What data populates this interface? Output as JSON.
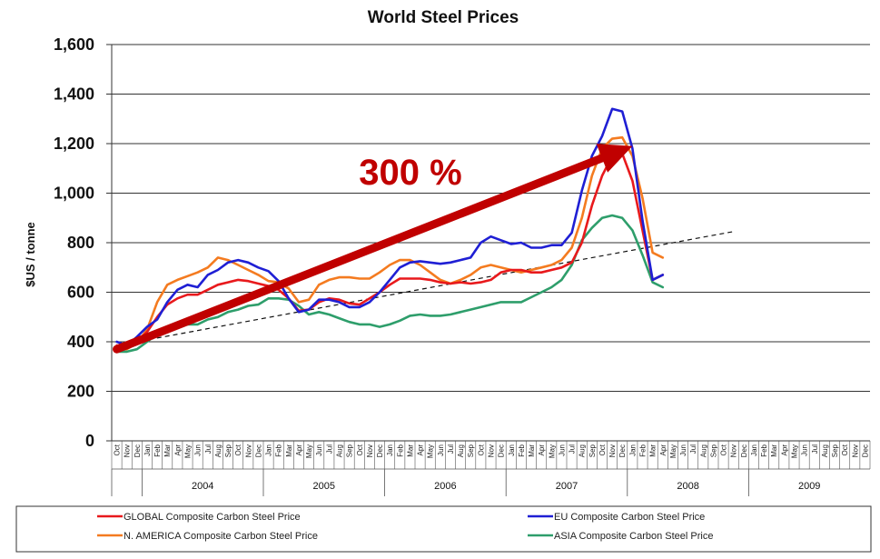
{
  "chart_data": {
    "type": "line",
    "title": "World Steel Prices",
    "xlabel": "",
    "ylabel": "$US / tonne",
    "ylim": [
      0,
      1600
    ],
    "yticks": [
      "0",
      "200",
      "400",
      "600",
      "800",
      "1,000",
      "1,200",
      "1,400",
      "1,600"
    ],
    "ytick_values": [
      0,
      200,
      400,
      600,
      800,
      1000,
      1200,
      1400,
      1600
    ],
    "grid": true,
    "legend_position": "bottom",
    "month_labels": [
      "Oct",
      "Nov",
      "Dec",
      "Jan",
      "Feb",
      "Mar",
      "Apr",
      "May",
      "Jun",
      "Jul",
      "Aug",
      "Sep",
      "Oct",
      "Nov",
      "Dec",
      "Jan",
      "Feb",
      "Mar",
      "Apr",
      "May",
      "Jun",
      "Jul",
      "Aug",
      "Sep",
      "Oct",
      "Nov",
      "Dec",
      "Jan",
      "Feb",
      "Mar",
      "Apr",
      "May",
      "Jun",
      "Jul",
      "Aug",
      "Sep",
      "Oct",
      "Nov",
      "Dec",
      "Jan",
      "Feb",
      "Mar",
      "Apr",
      "May",
      "Jun",
      "Jul",
      "Aug",
      "Sep",
      "Oct",
      "Nov",
      "Dec",
      "Jan",
      "Feb",
      "Mar",
      "Apr",
      "May",
      "Jun",
      "Jul",
      "Aug",
      "Sep",
      "Oct",
      "Nov",
      "Dec",
      "Jan",
      "Feb",
      "Mar",
      "Apr",
      "May",
      "Jun",
      "Jul",
      "Aug",
      "Sep",
      "Oct",
      "Nov",
      "Dec"
    ],
    "year_groups": [
      {
        "label": "",
        "start": 0,
        "end": 2
      },
      {
        "label": "2004",
        "start": 3,
        "end": 14
      },
      {
        "label": "2005",
        "start": 15,
        "end": 26
      },
      {
        "label": "2006",
        "start": 27,
        "end": 38
      },
      {
        "label": "2007",
        "start": 39,
        "end": 50
      },
      {
        "label": "2008",
        "start": 51,
        "end": 62
      },
      {
        "label": "2009",
        "start": 63,
        "end": 74
      }
    ],
    "series": [
      {
        "name": "GLOBAL Composite Carbon Steel Price",
        "color": "#e8191c",
        "values": [
          385,
          380,
          400,
          440,
          500,
          550,
          575,
          590,
          590,
          610,
          630,
          640,
          650,
          645,
          635,
          625,
          610,
          575,
          525,
          530,
          560,
          575,
          570,
          555,
          550,
          575,
          600,
          630,
          655,
          655,
          655,
          650,
          640,
          635,
          640,
          635,
          640,
          650,
          680,
          690,
          690,
          680,
          680,
          690,
          700,
          720,
          800,
          950,
          1070,
          1150,
          1160,
          1050,
          850,
          650,
          670
        ]
      },
      {
        "name": "N. AMERICA Composite Carbon Steel Price",
        "color": "#f47b20",
        "values": [
          370,
          370,
          395,
          450,
          560,
          630,
          650,
          665,
          680,
          700,
          740,
          730,
          710,
          690,
          670,
          645,
          640,
          615,
          560,
          570,
          630,
          650,
          660,
          660,
          655,
          655,
          680,
          710,
          730,
          730,
          710,
          680,
          650,
          635,
          650,
          670,
          700,
          710,
          700,
          690,
          680,
          690,
          700,
          710,
          730,
          780,
          900,
          1070,
          1180,
          1220,
          1225,
          1150,
          980,
          760,
          740
        ]
      },
      {
        "name": "EU Composite Carbon Steel Price",
        "color": "#1f1fd4",
        "values": [
          400,
          385,
          420,
          460,
          490,
          560,
          610,
          630,
          620,
          670,
          690,
          720,
          730,
          720,
          700,
          685,
          645,
          575,
          520,
          530,
          570,
          570,
          560,
          540,
          540,
          560,
          600,
          650,
          700,
          720,
          725,
          720,
          715,
          720,
          730,
          740,
          800,
          825,
          810,
          795,
          800,
          780,
          780,
          790,
          790,
          840,
          1010,
          1150,
          1230,
          1340,
          1330,
          1180,
          890,
          650,
          670
        ]
      },
      {
        "name": "ASIA Composite Carbon Steel Price",
        "color": "#2e9e6b",
        "values": [
          360,
          360,
          370,
          400,
          430,
          450,
          460,
          470,
          470,
          490,
          500,
          520,
          530,
          545,
          550,
          575,
          575,
          570,
          545,
          510,
          520,
          510,
          495,
          480,
          470,
          470,
          460,
          470,
          485,
          505,
          510,
          505,
          505,
          510,
          520,
          530,
          540,
          550,
          560,
          560,
          560,
          580,
          600,
          620,
          650,
          710,
          810,
          860,
          900,
          910,
          900,
          850,
          750,
          640,
          620
        ]
      }
    ],
    "trendline": {
      "x": [
        0,
        61
      ],
      "values": [
        385,
        845
      ],
      "style": "dashed"
    },
    "annotations": [
      {
        "text": "300 %",
        "type": "arrow",
        "x_start": 0,
        "y_start": 370,
        "x_end": 51,
        "y_end": 1190
      }
    ]
  }
}
